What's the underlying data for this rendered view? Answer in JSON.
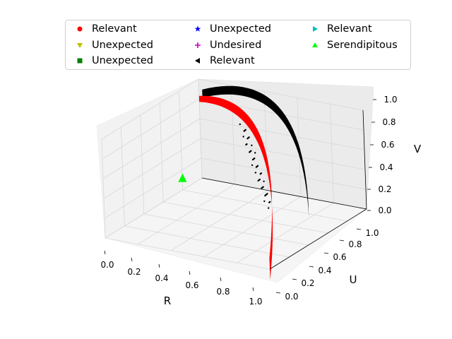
{
  "chart_data": {
    "type": "scatter",
    "projection": "3d",
    "title": "",
    "xlabel": "R",
    "ylabel": "U",
    "zlabel": "V",
    "xlim": [
      0.0,
      1.0
    ],
    "ylim": [
      0.0,
      1.0
    ],
    "zlim": [
      0.0,
      1.0
    ],
    "x_ticks": [
      "0.0",
      "0.2",
      "0.4",
      "0.6",
      "0.8",
      "1.0"
    ],
    "y_ticks": [
      "0.0",
      "0.2",
      "0.4",
      "0.6",
      "0.8",
      "1.0"
    ],
    "z_ticks": [
      "0.0",
      "0.2",
      "0.4",
      "0.6",
      "0.8",
      "1.0"
    ],
    "grid": true,
    "legend_position": "top",
    "legend_columns": 3,
    "series": [
      {
        "name": "Relevant",
        "marker": "circle",
        "color": "#ff0000"
      },
      {
        "name": "Unexpected",
        "marker": "triangle-down",
        "color": "#bfbf00"
      },
      {
        "name": "Unexpected",
        "marker": "square",
        "color": "#008000"
      },
      {
        "name": "Unexpected",
        "marker": "star",
        "color": "#0000ff"
      },
      {
        "name": "Undesired",
        "marker": "plus",
        "color": "#bf00bf"
      },
      {
        "name": "Relevant",
        "marker": "triangle-left",
        "color": "#000000"
      },
      {
        "name": "Relevant",
        "marker": "triangle-right",
        "color": "#00bfbf"
      },
      {
        "name": "Serendipitous",
        "marker": "triangle-up",
        "color": "#00ff00"
      }
    ],
    "surfaces": [
      {
        "series_index": 0,
        "description_points": [
          {
            "R": 0.0,
            "U": 1.0,
            "V": 0.8
          },
          {
            "R": 0.3,
            "U": 0.9,
            "V": 0.85
          },
          {
            "R": 0.6,
            "U": 0.7,
            "V": 0.6
          },
          {
            "R": 0.85,
            "U": 0.45,
            "V": 0.3
          },
          {
            "R": 1.0,
            "U": 0.0,
            "V": 0.0
          }
        ]
      },
      {
        "series_index": 5,
        "description_points": [
          {
            "R": 0.0,
            "U": 1.0,
            "V": 0.85
          },
          {
            "R": 0.4,
            "U": 0.95,
            "V": 0.9
          },
          {
            "R": 0.7,
            "U": 0.75,
            "V": 0.55
          },
          {
            "R": 0.9,
            "U": 0.5,
            "V": 0.3
          }
        ]
      }
    ]
  }
}
